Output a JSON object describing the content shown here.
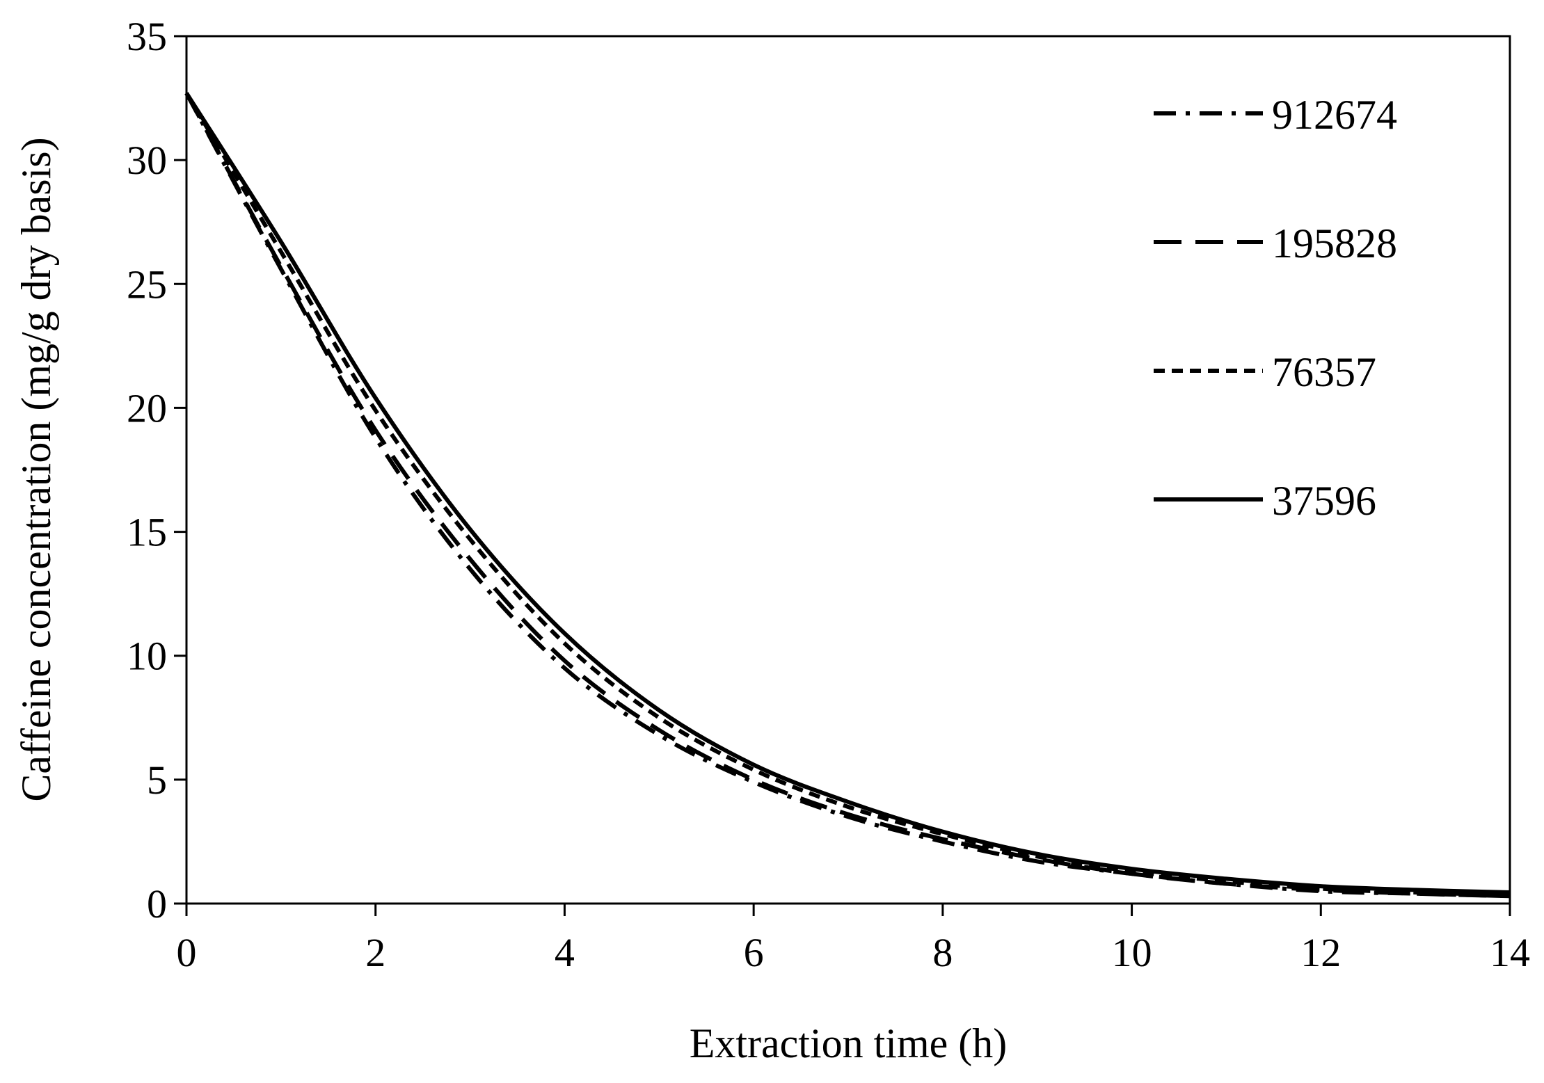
{
  "chart_data": {
    "type": "line",
    "title": "",
    "xlabel": "Extraction time (h)",
    "ylabel": "Caffeine concentration (mg/g dry basis)",
    "xlim": [
      0,
      14
    ],
    "ylim": [
      0,
      35
    ],
    "xticks": [
      0,
      2,
      4,
      6,
      8,
      10,
      12,
      14
    ],
    "yticks": [
      0,
      5,
      10,
      15,
      20,
      25,
      30,
      35
    ],
    "grid": false,
    "legend_position": "top-right",
    "x": [
      0,
      1,
      2,
      3,
      4,
      5,
      6,
      7,
      8,
      9,
      10,
      11,
      12,
      13,
      14
    ],
    "series": [
      {
        "name": "912674",
        "style": "dash-dot",
        "values": [
          32.7,
          25.6,
          18.8,
          13.5,
          9.5,
          6.8,
          4.9,
          3.5,
          2.5,
          1.7,
          1.2,
          0.8,
          0.5,
          0.4,
          0.3
        ]
      },
      {
        "name": "195828",
        "style": "long-dash",
        "values": [
          32.7,
          25.7,
          19.1,
          13.9,
          9.8,
          7.0,
          5.0,
          3.6,
          2.6,
          1.8,
          1.2,
          0.8,
          0.55,
          0.4,
          0.3
        ]
      },
      {
        "name": "76357",
        "style": "short-dash",
        "values": [
          32.7,
          26.3,
          19.9,
          14.7,
          10.5,
          7.5,
          5.4,
          3.9,
          2.8,
          1.9,
          1.3,
          0.9,
          0.6,
          0.45,
          0.35
        ]
      },
      {
        "name": "37596",
        "style": "solid",
        "values": [
          32.7,
          26.7,
          20.4,
          15.1,
          10.9,
          7.8,
          5.6,
          4.1,
          2.9,
          2.0,
          1.4,
          1.0,
          0.7,
          0.55,
          0.45
        ]
      }
    ]
  }
}
